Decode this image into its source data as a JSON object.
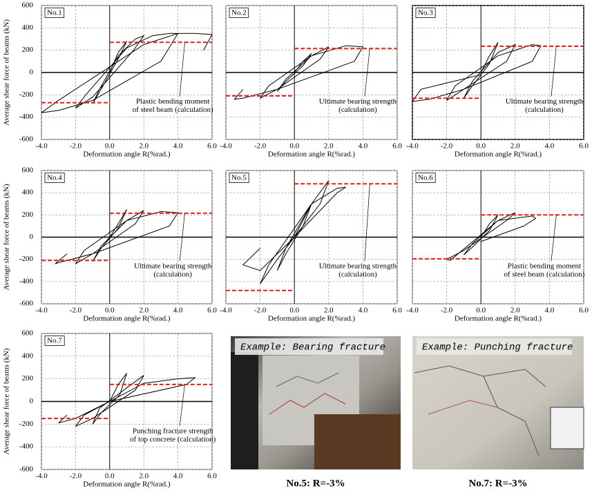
{
  "chart_data": [
    {
      "type": "line",
      "label": "No.1",
      "xlabel": "Deformation angle R(%rad.)",
      "ylabel": "Average shear force of beams (kN)",
      "xlim": [
        -4,
        6
      ],
      "ylim": [
        -600,
        600
      ],
      "xticks": [
        {
          "value": -4,
          "label": "-4.0"
        },
        {
          "value": -2,
          "label": "-2.0"
        },
        {
          "value": 0,
          "label": "0.0"
        },
        {
          "value": 2,
          "label": "2.0"
        },
        {
          "value": 4,
          "label": "4.0"
        },
        {
          "value": 6,
          "label": "6.0"
        }
      ],
      "yticks": [
        -600,
        -400,
        -200,
        0,
        200,
        400,
        600
      ],
      "grid": true,
      "series": [
        {
          "color": "#000000",
          "x": [
            0,
            0.5,
            1,
            0.6,
            -0.5,
            -1,
            -0.6,
            0.5,
            1.5,
            2,
            1.4,
            -1,
            -2,
            -1.4,
            1,
            2.5,
            3.5,
            4,
            3,
            -1,
            -3,
            -4,
            -3,
            2,
            4,
            5,
            6,
            5.5
          ],
          "values": [
            0,
            180,
            280,
            150,
            -150,
            -280,
            -150,
            150,
            300,
            330,
            200,
            -220,
            -320,
            -200,
            220,
            330,
            350,
            350,
            100,
            -250,
            -340,
            -360,
            -250,
            250,
            350,
            350,
            340,
            200
          ]
        },
        {
          "color": "#e02020",
          "dashed": true,
          "x": [
            -4,
            0,
            0,
            0,
            6
          ],
          "values": [
            -270,
            -270,
            null,
            270,
            270
          ]
        }
      ],
      "annotation": [
        "Plastic bending moment",
        "of steel beam (calculation)"
      ]
    },
    {
      "type": "line",
      "label": "No.2",
      "xlabel": "Deformation angle R(%rad.)",
      "xlim": [
        -4,
        6
      ],
      "ylim": [
        -600,
        600
      ],
      "xticks": [
        {
          "value": -4,
          "label": "-4.0"
        },
        {
          "value": -2,
          "label": "-2.0"
        },
        {
          "value": 0,
          "label": "0.0"
        },
        {
          "value": 2,
          "label": "2.0"
        },
        {
          "value": 4,
          "label": "4.0"
        },
        {
          "value": 6,
          "label": "6.0"
        }
      ],
      "yticks": [
        -600,
        -400,
        -200,
        0,
        200,
        400,
        600
      ],
      "grid": true,
      "series": [
        {
          "color": "#000000",
          "x": [
            0,
            0.5,
            1,
            0.5,
            -0.5,
            -1,
            -0.5,
            1,
            2,
            1.5,
            -1,
            -2,
            -1.5,
            1,
            3,
            4,
            3.5,
            -1,
            -3,
            -3.5,
            -3
          ],
          "values": [
            0,
            100,
            170,
            60,
            -80,
            -170,
            -60,
            150,
            230,
            120,
            -150,
            -230,
            -120,
            150,
            240,
            230,
            100,
            -150,
            -230,
            -240,
            -150
          ]
        },
        {
          "color": "#e02020",
          "dashed": true,
          "x": [
            -4,
            0,
            0,
            0,
            6
          ],
          "values": [
            -210,
            -210,
            null,
            215,
            215
          ]
        }
      ],
      "annotation": [
        "Ultimate bearing strength",
        "(calculation)"
      ]
    },
    {
      "type": "line",
      "label": "No.3",
      "xlabel": "Deformation angle R(%rad.)",
      "xlim": [
        -4,
        6
      ],
      "ylim": [
        -600,
        600
      ],
      "xticks": [
        {
          "value": -4,
          "label": "-4.0"
        },
        {
          "value": -2,
          "label": "-2.0"
        },
        {
          "value": 0,
          "label": "0.0"
        },
        {
          "value": 2,
          "label": "2.0"
        },
        {
          "value": 4,
          "label": "4.0"
        },
        {
          "value": 6,
          "label": "6.0"
        }
      ],
      "yticks": [
        -600,
        -400,
        -200,
        0,
        200,
        400,
        600
      ],
      "grid": true,
      "series": [
        {
          "color": "#000000",
          "x": [
            0,
            0.5,
            1,
            0.5,
            -0.5,
            -1,
            -0.5,
            1,
            2,
            1.5,
            -1,
            -2,
            -1.5,
            1,
            3,
            3.5,
            3,
            -1,
            -3,
            -4,
            -3.5,
            0
          ],
          "values": [
            0,
            150,
            270,
            80,
            -120,
            -230,
            -80,
            180,
            250,
            100,
            -150,
            -250,
            -120,
            150,
            250,
            240,
            100,
            -150,
            -240,
            -260,
            -150,
            -20
          ]
        },
        {
          "color": "#e02020",
          "dashed": true,
          "x": [
            -4,
            0,
            0,
            0,
            6
          ],
          "values": [
            -230,
            -230,
            null,
            235,
            235
          ]
        }
      ],
      "annotation": [
        "Ultimate bearing strength",
        "(calculation)"
      ]
    },
    {
      "type": "line",
      "label": "No.4",
      "xlabel": "Deformation angle R(%rad.)",
      "ylabel": "Average shear force of beams (kN)",
      "xlim": [
        -4,
        6
      ],
      "ylim": [
        -600,
        600
      ],
      "xticks": [
        {
          "value": -4,
          "label": "-4.0"
        },
        {
          "value": -2,
          "label": "-2.0"
        },
        {
          "value": 0,
          "label": "0.0"
        },
        {
          "value": 2,
          "label": "2.0"
        },
        {
          "value": 4,
          "label": "4.0"
        },
        {
          "value": 6,
          "label": "6.0"
        }
      ],
      "yticks": [
        -600,
        -400,
        -200,
        0,
        200,
        400,
        600
      ],
      "grid": true,
      "series": [
        {
          "color": "#000000",
          "x": [
            0,
            0.5,
            1,
            0.5,
            -0.5,
            -1,
            -0.5,
            1,
            2,
            1.5,
            -1,
            -2,
            -1.5,
            1,
            3,
            4,
            3.5,
            -1,
            -3,
            -3.2,
            -2.5
          ],
          "values": [
            0,
            120,
            250,
            80,
            -100,
            -220,
            -80,
            150,
            240,
            120,
            -150,
            -240,
            -120,
            150,
            230,
            220,
            100,
            -150,
            -230,
            -240,
            -150
          ]
        },
        {
          "color": "#e02020",
          "dashed": true,
          "x": [
            -4,
            0,
            0,
            0,
            6
          ],
          "values": [
            -210,
            -210,
            null,
            215,
            215
          ]
        }
      ],
      "annotation": [
        "Ultimate bearing strength",
        "(calculation)"
      ]
    },
    {
      "type": "line",
      "label": "No.5",
      "xlabel": "Deformation angle R(%rad.)",
      "xlim": [
        -4,
        6
      ],
      "ylim": [
        -600,
        600
      ],
      "xticks": [
        {
          "value": -4,
          "label": "-4.0"
        },
        {
          "value": -2,
          "label": "-2.0"
        },
        {
          "value": 0,
          "label": "0.0"
        },
        {
          "value": 2,
          "label": "2.0"
        },
        {
          "value": 4,
          "label": "4.0"
        },
        {
          "value": 6,
          "label": "6.0"
        }
      ],
      "yticks": [
        -600,
        -400,
        -200,
        0,
        200,
        400,
        600
      ],
      "grid": true,
      "series": [
        {
          "color": "#000000",
          "x": [
            0,
            0.5,
            1,
            0.5,
            -0.5,
            -1,
            -0.5,
            1,
            2,
            1.5,
            -1,
            -2,
            -1.5,
            1,
            2.5,
            3,
            2.5,
            0,
            -2,
            -3,
            -2
          ],
          "values": [
            0,
            150,
            300,
            100,
            -150,
            -300,
            -100,
            300,
            510,
            300,
            -200,
            -420,
            -250,
            300,
            440,
            450,
            400,
            0,
            -300,
            -250,
            -100
          ]
        },
        {
          "color": "#e02020",
          "dashed": true,
          "x": [
            -4,
            0,
            0,
            0,
            6
          ],
          "values": [
            -480,
            -480,
            null,
            480,
            480
          ]
        }
      ],
      "annotation": [
        "Ultimate bearing strength",
        "(calculation)"
      ]
    },
    {
      "type": "line",
      "label": "No.6",
      "xlabel": "Deformation angle R(%rad.)",
      "xlim": [
        -4,
        6
      ],
      "ylim": [
        -600,
        600
      ],
      "xticks": [
        {
          "value": -4,
          "label": "-4.0"
        },
        {
          "value": -2,
          "label": "-2.0"
        },
        {
          "value": 0,
          "label": "0.0"
        },
        {
          "value": 2,
          "label": "2.0"
        },
        {
          "value": 4,
          "label": "4.0"
        },
        {
          "value": 6,
          "label": "6.0"
        }
      ],
      "yticks": [
        -600,
        -400,
        -200,
        0,
        200,
        400,
        600
      ],
      "grid": true,
      "series": [
        {
          "color": "#000000",
          "x": [
            0,
            0.5,
            1,
            0.5,
            -0.5,
            -1,
            -0.5,
            1,
            2,
            1.5,
            -1,
            -2,
            -1.8,
            1,
            3,
            3.2,
            2.5,
            0
          ],
          "values": [
            0,
            120,
            200,
            60,
            -90,
            -160,
            -60,
            150,
            220,
            150,
            -120,
            -200,
            -210,
            150,
            190,
            170,
            100,
            -40
          ]
        },
        {
          "color": "#e02020",
          "dashed": true,
          "x": [
            -4,
            0,
            0,
            0,
            6
          ],
          "values": [
            -195,
            -195,
            null,
            200,
            200
          ]
        }
      ],
      "annotation": [
        "Plastic bending moment",
        "of steel beam (calculation)"
      ]
    },
    {
      "type": "line",
      "label": "No.7",
      "xlabel": "Deformation angle R(%rad.)",
      "ylabel": "Average shear force of beams (kN)",
      "xlim": [
        -4,
        6
      ],
      "ylim": [
        -600,
        600
      ],
      "xticks": [
        {
          "value": -4,
          "label": "-4.0"
        },
        {
          "value": -2,
          "label": "-2.0"
        },
        {
          "value": 0,
          "label": "0.0"
        },
        {
          "value": 2,
          "label": "2.0"
        },
        {
          "value": 4,
          "label": "4.0"
        },
        {
          "value": 6,
          "label": "6.0"
        }
      ],
      "yticks": [
        -600,
        -400,
        -200,
        0,
        200,
        400,
        600
      ],
      "grid": true,
      "series": [
        {
          "color": "#000000",
          "x": [
            0,
            0.5,
            1,
            0.6,
            -0.5,
            -1,
            -0.6,
            1,
            2,
            1.5,
            -1,
            -2,
            -1.5,
            2,
            4,
            5,
            4.5,
            0,
            -2,
            -3,
            -2.5
          ],
          "values": [
            0,
            150,
            250,
            60,
            -100,
            -200,
            -60,
            120,
            230,
            100,
            -150,
            -220,
            -120,
            160,
            200,
            210,
            150,
            0,
            -150,
            -190,
            -120
          ]
        },
        {
          "color": "#e02020",
          "dashed": true,
          "x": [
            -4,
            0,
            0,
            0,
            6
          ],
          "values": [
            -150,
            -150,
            null,
            150,
            150
          ]
        }
      ],
      "annotation": [
        "Punching fracture strength",
        "of top concrete (calculation)"
      ]
    }
  ],
  "photos": [
    {
      "overlay": "Example: Bearing fracture",
      "caption": "No.5: R=-3%"
    },
    {
      "overlay": "Example: Punching fracture",
      "caption": "No.7: R=-3%"
    }
  ]
}
